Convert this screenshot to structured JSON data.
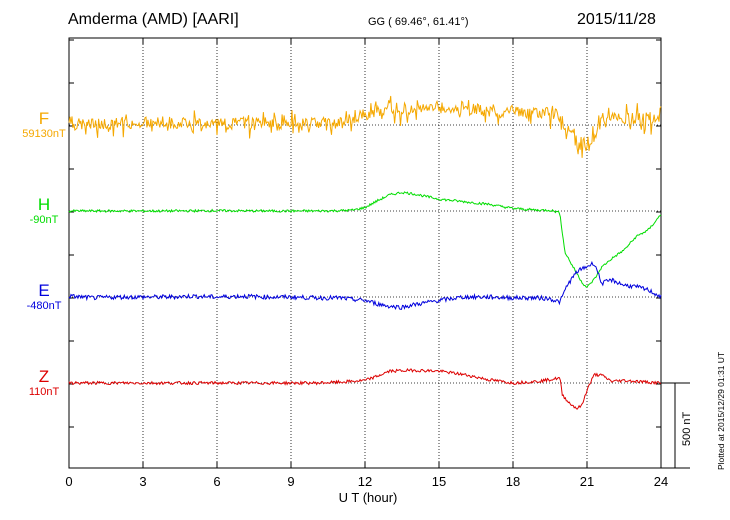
{
  "header": {
    "station": "Amderma (AMD)  [AARI]",
    "coordinates": "GG ( 69.46°,  61.41°)",
    "date": "2015/11/28"
  },
  "plotted_note": "Plotted at 2015/12/29 01:31  UT",
  "scale_label": "500 nT",
  "colors": {
    "F": "#f5a800",
    "H": "#00dd00",
    "E": "#0000dd",
    "Z": "#dd0000"
  },
  "chart_data": {
    "type": "line",
    "xlabel": "U T (hour)",
    "xlim": [
      0,
      24
    ],
    "x_ticks": [
      "0",
      "3",
      "6",
      "9",
      "12",
      "15",
      "18",
      "21",
      "24"
    ],
    "grid": true,
    "scale_bar_nT": 500,
    "series": [
      {
        "name": "F",
        "baseline": "59130nT",
        "x": [
          0,
          1,
          2,
          3,
          4,
          5,
          6,
          7,
          8,
          9,
          10,
          11,
          11.5,
          12,
          12.5,
          13,
          14,
          15,
          16,
          17,
          18,
          19,
          19.5,
          19.9,
          20.2,
          20.6,
          21,
          21.3,
          21.6,
          22,
          23,
          24
        ],
        "y": [
          0,
          10,
          12,
          15,
          15,
          15,
          15,
          12,
          12,
          12,
          10,
          10,
          40,
          60,
          80,
          95,
          100,
          105,
          95,
          80,
          80,
          75,
          70,
          50,
          -20,
          -90,
          -120,
          -60,
          40,
          50,
          40,
          40
        ]
      },
      {
        "name": "H",
        "baseline": "-90nT",
        "x": [
          0,
          2,
          4,
          6,
          8,
          10,
          11,
          11.5,
          12,
          12.5,
          13,
          13.5,
          14,
          15,
          16,
          17,
          18,
          19,
          19.5,
          19.9,
          20.1,
          20.4,
          20.8,
          21,
          21.3,
          21.6,
          22,
          22.5,
          23,
          23.5,
          24
        ],
        "y": [
          0,
          0,
          0,
          2,
          0,
          0,
          2,
          5,
          20,
          60,
          95,
          110,
          100,
          70,
          55,
          40,
          15,
          5,
          5,
          -10,
          -240,
          -320,
          -420,
          -450,
          -400,
          -330,
          -280,
          -230,
          -150,
          -110,
          -20
        ]
      },
      {
        "name": "E",
        "baseline": "-480nT",
        "x": [
          0,
          1,
          2,
          3,
          4,
          5,
          6,
          7,
          8,
          9,
          10,
          11,
          11.5,
          12,
          12.5,
          13,
          13.5,
          14,
          15,
          16,
          17,
          18,
          19,
          19.5,
          19.9,
          20.2,
          20.6,
          21,
          21.3,
          21.6,
          22,
          22.5,
          23,
          23.5,
          24
        ],
        "y": [
          5,
          -5,
          0,
          0,
          0,
          5,
          0,
          5,
          0,
          0,
          -5,
          -5,
          -15,
          -20,
          -40,
          -55,
          -60,
          -45,
          -20,
          0,
          0,
          -5,
          -5,
          -10,
          -30,
          70,
          150,
          180,
          200,
          80,
          100,
          70,
          60,
          40,
          0
        ]
      },
      {
        "name": "Z",
        "baseline": "110nT",
        "x": [
          0,
          2,
          4,
          6,
          8,
          10,
          11,
          11.5,
          12,
          12.5,
          13,
          14,
          15,
          16,
          17,
          18,
          19,
          19.5,
          19.9,
          20,
          20.3,
          20.6,
          20.8,
          21,
          21.3,
          21.6,
          22,
          22.5,
          23,
          23.5,
          24
        ],
        "y": [
          0,
          0,
          0,
          0,
          0,
          0,
          5,
          10,
          15,
          40,
          70,
          75,
          70,
          50,
          20,
          0,
          10,
          20,
          30,
          -70,
          -120,
          -150,
          -130,
          -40,
          50,
          45,
          10,
          15,
          10,
          5,
          0
        ]
      }
    ]
  }
}
